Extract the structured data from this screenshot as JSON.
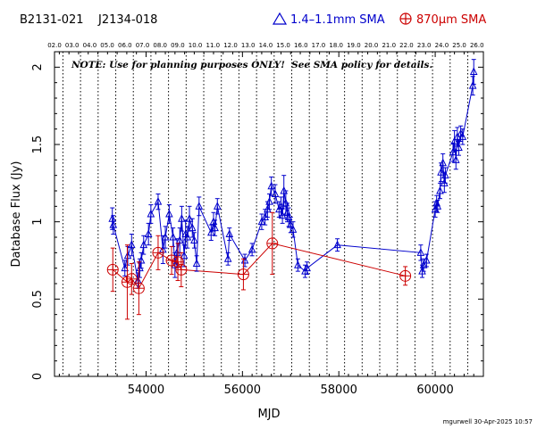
{
  "header": {
    "source_names": "B2131-021    J2134-018",
    "legend_blue": "1.4–1.1mm SMA",
    "legend_red": "870μm SMA"
  },
  "note": "NOTE: Use for planning purposes ONLY!  See SMA policy for details.",
  "credit": "mgurwell 30-Apr-2025 10:57",
  "colors": {
    "blue": "#0000cc",
    "red": "#cc0000",
    "axis": "#000000"
  },
  "chart_data": {
    "type": "scatter",
    "xlabel": "MJD",
    "ylabel": "Database Flux (Jy)",
    "xlim": [
      52100,
      61000
    ],
    "ylim": [
      0,
      2.1
    ],
    "x_ticks": [
      54000,
      56000,
      58000,
      60000
    ],
    "x_tick_labels": [
      "54000",
      "56000",
      "58000",
      "60000"
    ],
    "y_ticks": [
      0,
      0.5,
      1,
      1.5,
      2
    ],
    "y_tick_labels": [
      "0",
      "0.5",
      "1",
      "1.5",
      "2"
    ],
    "top_axis_labels": [
      "02.0",
      "03.0",
      "04.0",
      "05.0",
      "06.0",
      "07.0",
      "08.0",
      "09.0",
      "10.0",
      "11.0",
      "12.0",
      "13.0",
      "14.0",
      "15.0",
      "16.0",
      "17.0",
      "18.0",
      "19.0",
      "20.0",
      "21.0",
      "22.0",
      "23.0",
      "24.0",
      "25.0",
      "26.0"
    ],
    "year_lines_mjd": [
      52275,
      52640,
      53005,
      53371,
      53736,
      54101,
      54466,
      54832,
      55197,
      55562,
      55927,
      56293,
      56658,
      57023,
      57388,
      57754,
      58119,
      58484,
      58849,
      59215,
      59580,
      59945,
      60310,
      60676
    ],
    "grid": false,
    "legend": "top",
    "series": [
      {
        "name": "1.4–1.1mm SMA",
        "marker": "triangle",
        "points": [
          {
            "x": 53300,
            "y": 1.02,
            "err": 0.07
          },
          {
            "x": 53320,
            "y": 0.98,
            "err": 0.06
          },
          {
            "x": 53560,
            "y": 0.7,
            "err": 0.05
          },
          {
            "x": 53620,
            "y": 0.78,
            "err": 0.06
          },
          {
            "x": 53700,
            "y": 0.85,
            "err": 0.07
          },
          {
            "x": 53830,
            "y": 0.62,
            "err": 0.05
          },
          {
            "x": 53870,
            "y": 0.7,
            "err": 0.06
          },
          {
            "x": 53900,
            "y": 0.75,
            "err": 0.05
          },
          {
            "x": 53950,
            "y": 0.85,
            "err": 0.06
          },
          {
            "x": 54050,
            "y": 0.92,
            "err": 0.07
          },
          {
            "x": 54100,
            "y": 1.05,
            "err": 0.06
          },
          {
            "x": 54250,
            "y": 1.13,
            "err": 0.05
          },
          {
            "x": 54350,
            "y": 0.82,
            "err": 0.09
          },
          {
            "x": 54400,
            "y": 0.9,
            "err": 0.07
          },
          {
            "x": 54480,
            "y": 1.05,
            "err": 0.06
          },
          {
            "x": 54560,
            "y": 0.9,
            "err": 0.06
          },
          {
            "x": 54600,
            "y": 0.72,
            "err": 0.08
          },
          {
            "x": 54640,
            "y": 0.8,
            "err": 0.09
          },
          {
            "x": 54700,
            "y": 0.88,
            "err": 0.08
          },
          {
            "x": 54740,
            "y": 1.02,
            "err": 0.08
          },
          {
            "x": 54790,
            "y": 0.78,
            "err": 0.07
          },
          {
            "x": 54820,
            "y": 0.92,
            "err": 0.09
          },
          {
            "x": 54860,
            "y": 0.9,
            "err": 0.07
          },
          {
            "x": 54900,
            "y": 1.02,
            "err": 0.08
          },
          {
            "x": 54960,
            "y": 0.96,
            "err": 0.06
          },
          {
            "x": 55000,
            "y": 0.88,
            "err": 0.05
          },
          {
            "x": 55050,
            "y": 0.73,
            "err": 0.05
          },
          {
            "x": 55100,
            "y": 1.1,
            "err": 0.06
          },
          {
            "x": 55350,
            "y": 0.93,
            "err": 0.05
          },
          {
            "x": 55400,
            "y": 1.0,
            "err": 0.06
          },
          {
            "x": 55430,
            "y": 0.96,
            "err": 0.05
          },
          {
            "x": 55480,
            "y": 1.1,
            "err": 0.05
          },
          {
            "x": 55700,
            "y": 0.76,
            "err": 0.04
          },
          {
            "x": 55730,
            "y": 0.92,
            "err": 0.04
          },
          {
            "x": 56050,
            "y": 0.75,
            "err": 0.04
          },
          {
            "x": 56200,
            "y": 0.82,
            "err": 0.04
          },
          {
            "x": 56400,
            "y": 1.0,
            "err": 0.05
          },
          {
            "x": 56470,
            "y": 1.03,
            "err": 0.05
          },
          {
            "x": 56520,
            "y": 1.08,
            "err": 0.05
          },
          {
            "x": 56560,
            "y": 1.13,
            "err": 0.05
          },
          {
            "x": 56600,
            "y": 1.23,
            "err": 0.06
          },
          {
            "x": 56680,
            "y": 1.18,
            "err": 0.06
          },
          {
            "x": 56760,
            "y": 1.08,
            "err": 0.05
          },
          {
            "x": 56800,
            "y": 1.1,
            "err": 0.06
          },
          {
            "x": 56830,
            "y": 1.04,
            "err": 0.05
          },
          {
            "x": 56860,
            "y": 1.2,
            "err": 0.1
          },
          {
            "x": 56900,
            "y": 1.12,
            "err": 0.08
          },
          {
            "x": 56930,
            "y": 1.06,
            "err": 0.06
          },
          {
            "x": 56960,
            "y": 1.03,
            "err": 0.06
          },
          {
            "x": 57000,
            "y": 0.98,
            "err": 0.05
          },
          {
            "x": 57050,
            "y": 0.95,
            "err": 0.05
          },
          {
            "x": 57150,
            "y": 0.72,
            "err": 0.04
          },
          {
            "x": 57300,
            "y": 0.68,
            "err": 0.04
          },
          {
            "x": 57340,
            "y": 0.7,
            "err": 0.04
          },
          {
            "x": 57970,
            "y": 0.85,
            "err": 0.04
          },
          {
            "x": 59700,
            "y": 0.8,
            "err": 0.05
          },
          {
            "x": 59730,
            "y": 0.68,
            "err": 0.04
          },
          {
            "x": 59760,
            "y": 0.72,
            "err": 0.04
          },
          {
            "x": 59820,
            "y": 0.75,
            "err": 0.04
          },
          {
            "x": 60000,
            "y": 1.08,
            "err": 0.05
          },
          {
            "x": 60030,
            "y": 1.12,
            "err": 0.05
          },
          {
            "x": 60050,
            "y": 1.1,
            "err": 0.04
          },
          {
            "x": 60100,
            "y": 1.2,
            "err": 0.05
          },
          {
            "x": 60120,
            "y": 1.32,
            "err": 0.06
          },
          {
            "x": 60160,
            "y": 1.38,
            "err": 0.06
          },
          {
            "x": 60190,
            "y": 1.25,
            "err": 0.06
          },
          {
            "x": 60210,
            "y": 1.3,
            "err": 0.05
          },
          {
            "x": 60370,
            "y": 1.45,
            "err": 0.06
          },
          {
            "x": 60400,
            "y": 1.52,
            "err": 0.07
          },
          {
            "x": 60430,
            "y": 1.4,
            "err": 0.06
          },
          {
            "x": 60460,
            "y": 1.55,
            "err": 0.06
          },
          {
            "x": 60490,
            "y": 1.48,
            "err": 0.05
          },
          {
            "x": 60530,
            "y": 1.57,
            "err": 0.05
          },
          {
            "x": 60570,
            "y": 1.55,
            "err": 0.05
          },
          {
            "x": 60780,
            "y": 1.88,
            "err": 0.06
          },
          {
            "x": 60800,
            "y": 1.97,
            "err": 0.08
          }
        ]
      },
      {
        "name": "870μm SMA",
        "marker": "circle-plus",
        "points": [
          {
            "x": 53310,
            "y": 0.69,
            "err": 0.14
          },
          {
            "x": 53610,
            "y": 0.61,
            "err": 0.24
          },
          {
            "x": 53700,
            "y": 0.63,
            "err": 0.1
          },
          {
            "x": 53850,
            "y": 0.57,
            "err": 0.17
          },
          {
            "x": 54250,
            "y": 0.8,
            "err": 0.11
          },
          {
            "x": 54530,
            "y": 0.75,
            "err": 0.09
          },
          {
            "x": 54660,
            "y": 0.74,
            "err": 0.12
          },
          {
            "x": 54730,
            "y": 0.69,
            "err": 0.11
          },
          {
            "x": 56020,
            "y": 0.66,
            "err": 0.1
          },
          {
            "x": 56620,
            "y": 0.86,
            "err": 0.2
          },
          {
            "x": 59380,
            "y": 0.65,
            "err": 0.06
          }
        ]
      }
    ]
  }
}
